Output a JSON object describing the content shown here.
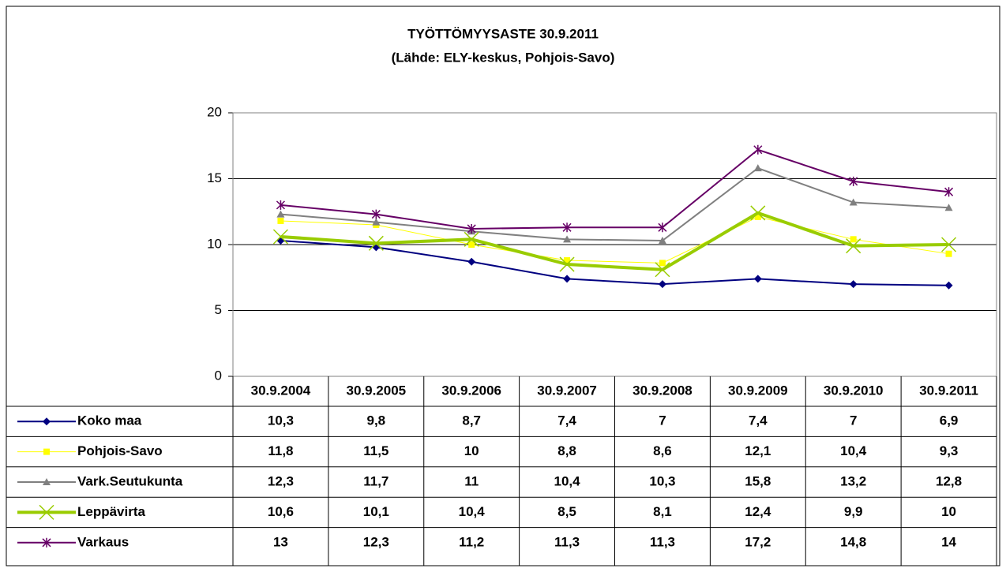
{
  "chart_data": {
    "type": "line",
    "title": "TYÖTTÖMYYSASTE 30.9.2011",
    "subtitle": "(Lähde: ELY-keskus, Pohjois-Savo)",
    "categories": [
      "30.9.2004",
      "30.9.2005",
      "30.9.2006",
      "30.9.2007",
      "30.9.2008",
      "30.9.2009",
      "30.9.2010",
      "30.9.2011"
    ],
    "ylim": [
      0,
      20
    ],
    "yticks": [
      0,
      5,
      10,
      15,
      20
    ],
    "grid": true,
    "series": [
      {
        "name": "Koko maa",
        "color": "#000080",
        "marker": "diamond",
        "line_width": 2,
        "values": [
          10.3,
          9.8,
          8.7,
          7.4,
          7,
          7.4,
          7,
          6.9
        ],
        "value_labels": [
          "10,3",
          "9,8",
          "8,7",
          "7,4",
          "7",
          "7,4",
          "7",
          "6,9"
        ]
      },
      {
        "name": "Pohjois-Savo",
        "color": "#ffff00",
        "marker": "square",
        "line_width": 1,
        "values": [
          11.8,
          11.5,
          10,
          8.8,
          8.6,
          12.1,
          10.4,
          9.3
        ],
        "value_labels": [
          "11,8",
          "11,5",
          "10",
          "8,8",
          "8,6",
          "12,1",
          "10,4",
          "9,3"
        ]
      },
      {
        "name": "Vark.Seutukunta",
        "color": "#808080",
        "marker": "triangle",
        "line_width": 2,
        "values": [
          12.3,
          11.7,
          11,
          10.4,
          10.3,
          15.8,
          13.2,
          12.8
        ],
        "value_labels": [
          "12,3",
          "11,7",
          "11",
          "10,4",
          "10,3",
          "15,8",
          "13,2",
          "12,8"
        ]
      },
      {
        "name": "Leppävirta",
        "color": "#99cc00",
        "marker": "x",
        "line_width": 4,
        "values": [
          10.6,
          10.1,
          10.4,
          8.5,
          8.1,
          12.4,
          9.9,
          10
        ],
        "value_labels": [
          "10,6",
          "10,1",
          "10,4",
          "8,5",
          "8,1",
          "12,4",
          "9,9",
          "10"
        ]
      },
      {
        "name": "Varkaus",
        "color": "#660066",
        "marker": "star",
        "line_width": 2,
        "values": [
          13,
          12.3,
          11.2,
          11.3,
          11.3,
          17.2,
          14.8,
          14
        ],
        "value_labels": [
          "13",
          "12,3",
          "11,2",
          "11,3",
          "11,3",
          "17,2",
          "14,8",
          "14"
        ]
      }
    ]
  }
}
